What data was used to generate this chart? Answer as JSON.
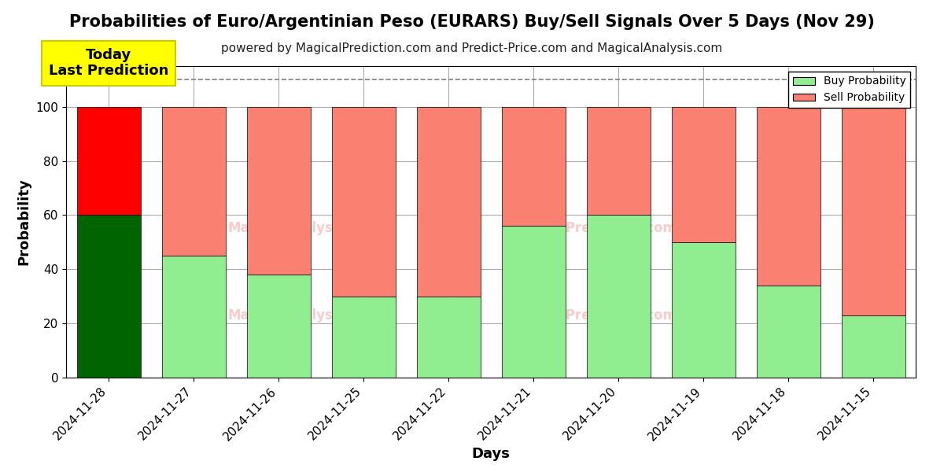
{
  "title": "Probabilities of Euro/Argentinian Peso (EURARS) Buy/Sell Signals Over 5 Days (Nov 29)",
  "subtitle": "powered by MagicalPrediction.com and Predict-Price.com and MagicalAnalysis.com",
  "xlabel": "Days",
  "ylabel": "Probability",
  "categories": [
    "2024-11-28",
    "2024-11-27",
    "2024-11-26",
    "2024-11-25",
    "2024-11-22",
    "2024-11-21",
    "2024-11-20",
    "2024-11-19",
    "2024-11-18",
    "2024-11-15"
  ],
  "buy_values": [
    60,
    45,
    38,
    30,
    30,
    56,
    60,
    50,
    34,
    23
  ],
  "sell_values": [
    40,
    55,
    62,
    70,
    70,
    44,
    40,
    50,
    66,
    77
  ],
  "buy_colors": [
    "#006400",
    "#90EE90",
    "#90EE90",
    "#90EE90",
    "#90EE90",
    "#90EE90",
    "#90EE90",
    "#90EE90",
    "#90EE90",
    "#90EE90"
  ],
  "sell_colors": [
    "#FF0000",
    "#FA8072",
    "#FA8072",
    "#FA8072",
    "#FA8072",
    "#FA8072",
    "#FA8072",
    "#FA8072",
    "#FA8072",
    "#FA8072"
  ],
  "ylim": [
    0,
    115
  ],
  "yticks": [
    0,
    20,
    40,
    60,
    80,
    100
  ],
  "dashed_line_y": 110,
  "legend_buy_color": "#90EE90",
  "legend_sell_color": "#FA8072",
  "legend_buy_label": "Buy Probability",
  "legend_sell_label": "Sell Probability",
  "today_box_color": "#FFFF00",
  "today_box_text": "Today\nLast Prediction",
  "background_color": "#ffffff",
  "plot_bg_color": "#ffffff",
  "grid_color": "#aaaaaa",
  "title_fontsize": 15,
  "subtitle_fontsize": 11,
  "axis_label_fontsize": 13,
  "tick_fontsize": 11,
  "bar_width": 0.75
}
